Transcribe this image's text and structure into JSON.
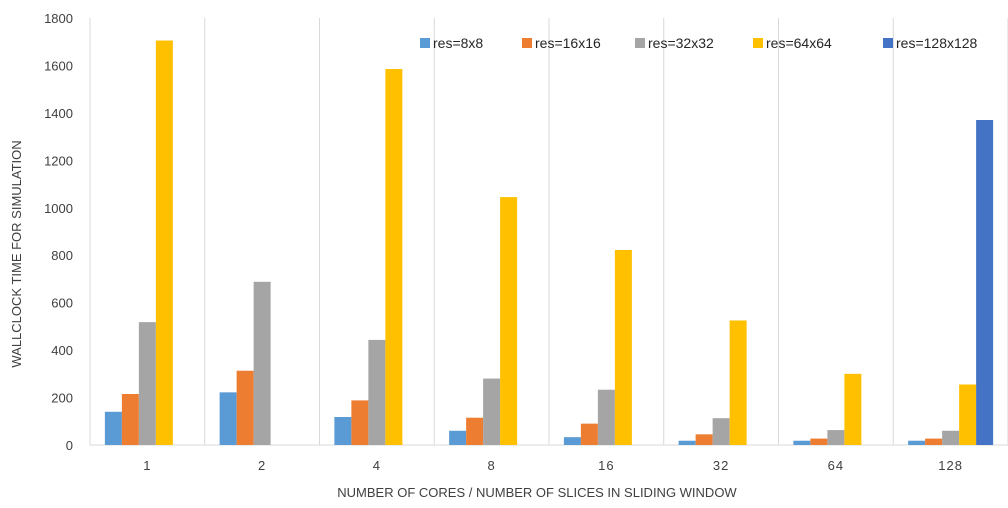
{
  "chart_data": {
    "type": "bar",
    "title": "",
    "xlabel": "NUMBER OF CORES / NUMBER OF SLICES IN SLIDING WINDOW",
    "ylabel": "WALLCLOCK TIME FOR SIMULATION",
    "categories": [
      "1",
      "2",
      "4",
      "8",
      "16",
      "32",
      "64",
      "128"
    ],
    "ylim": [
      0,
      1800
    ],
    "yticks": [
      "0",
      "200",
      "400",
      "600",
      "800",
      "1000",
      "1200",
      "1400",
      "1600",
      "1800"
    ],
    "grid": "vertical category separators and horizontal baseline",
    "legend_position": "top-right",
    "series": [
      {
        "name": "res=8x8",
        "color": "#5b9bd5",
        "values": [
          140,
          222,
          118,
          60,
          33,
          18,
          18,
          18
        ]
      },
      {
        "name": "res=16x16",
        "color": "#ed7d31",
        "values": [
          215,
          313,
          188,
          115,
          90,
          45,
          27,
          27
        ]
      },
      {
        "name": "res=32x32",
        "color": "#a5a5a5",
        "values": [
          518,
          688,
          443,
          280,
          233,
          113,
          63,
          60
        ]
      },
      {
        "name": "res=64x64",
        "color": "#ffc000",
        "values": [
          1705,
          null,
          1585,
          1045,
          822,
          525,
          300,
          255
        ]
      },
      {
        "name": "res=128x128",
        "color": "#4472c4",
        "values": [
          null,
          null,
          null,
          null,
          null,
          null,
          null,
          1370
        ]
      }
    ]
  }
}
